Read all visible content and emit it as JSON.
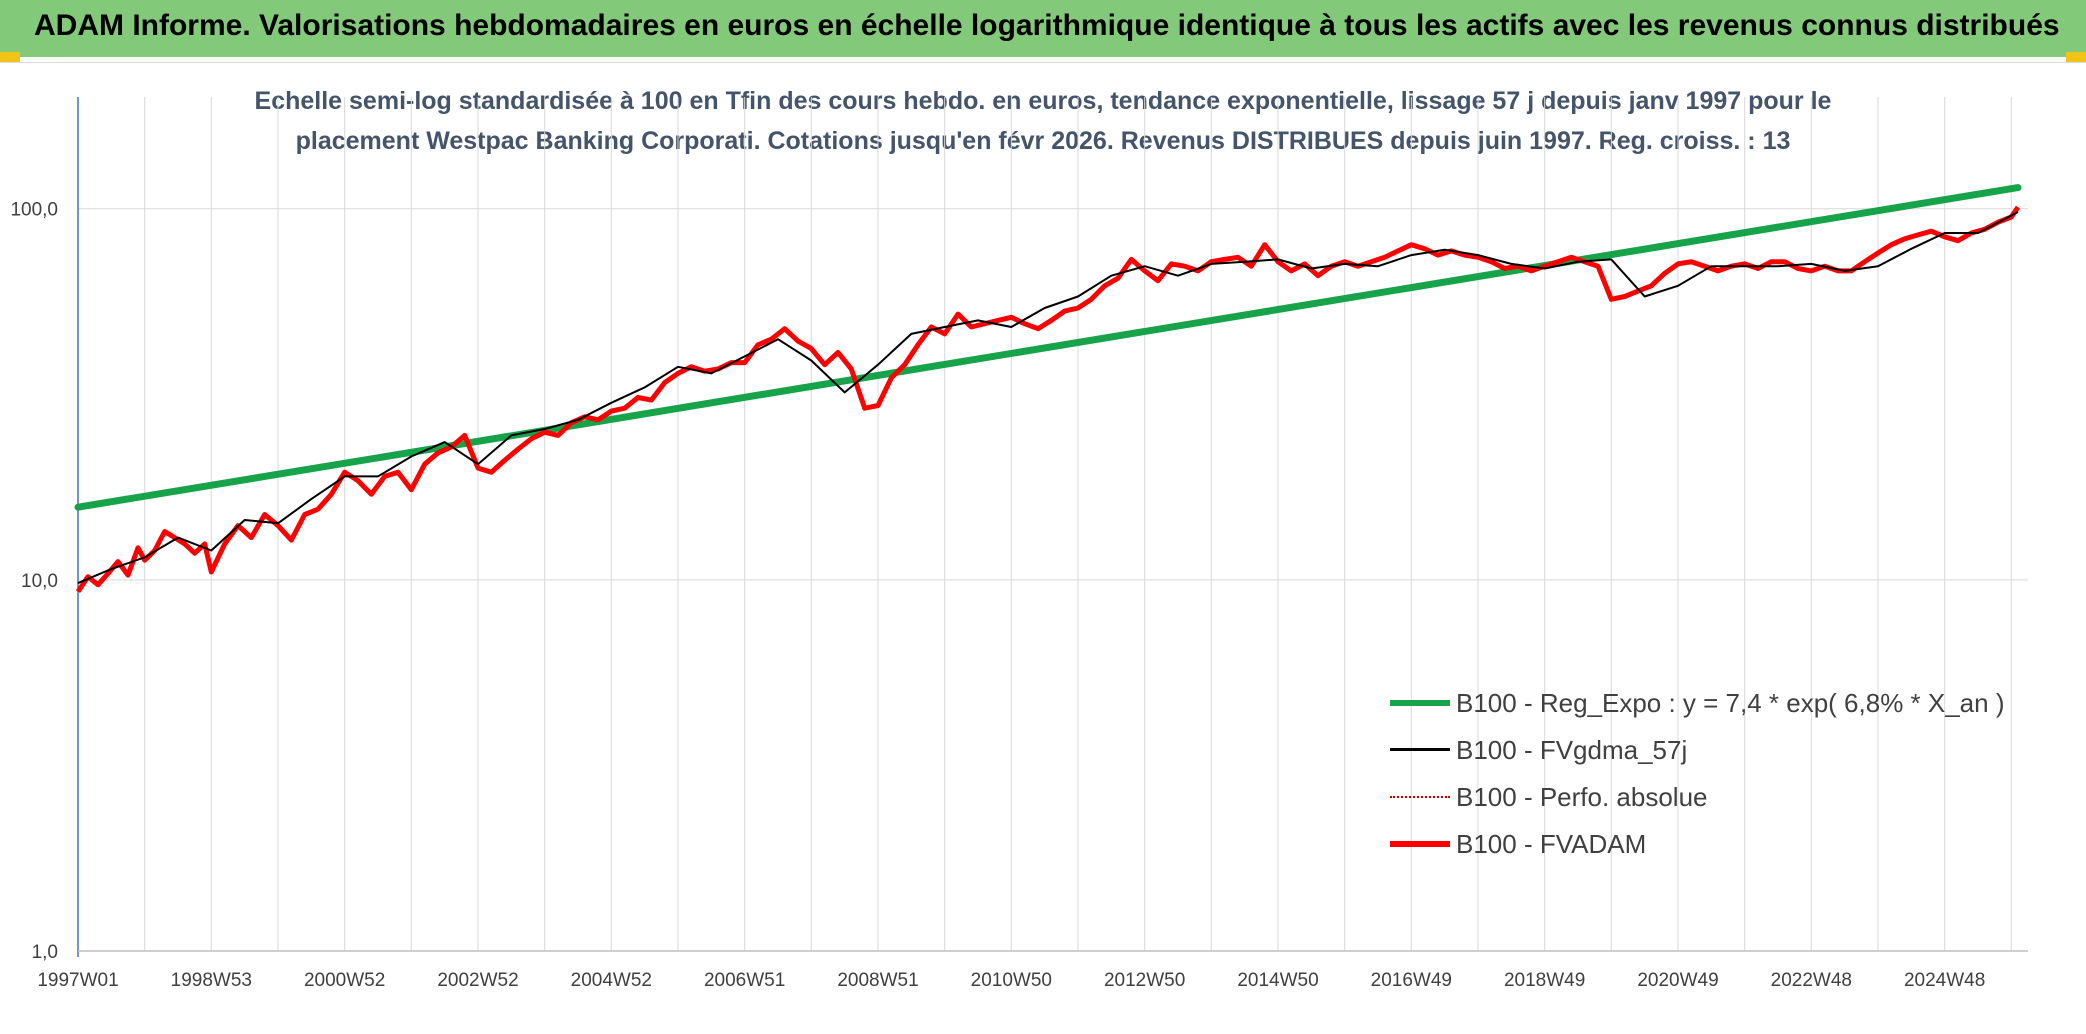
{
  "header": {
    "title": "ADAM Informe. Valorisations hebdomadaires en euros en échelle logarithmique identique à tous les actifs avec les revenus connus distribués"
  },
  "chart_data": {
    "type": "line",
    "title_line1": "Echelle semi-log standardisée à 100 en Tfin des cours hebdo. en euros, tendance exponentielle, lissage 57 j depuis janv 1997 pour le",
    "title_line2": "placement Westpac Banking Corporati. Cotations jusqu'en févr 2026. Revenus DISTRIBUES depuis juin 1997. Reg. croiss. : 13",
    "y_scale": "log",
    "ylim": [
      1,
      200
    ],
    "y_ticks": [
      1,
      10,
      100
    ],
    "y_tick_labels": [
      "1,0",
      "10,0",
      "100,0"
    ],
    "xlim": [
      1997.0,
      2026.25
    ],
    "x_tick_labels": [
      "1997W01",
      "1998W53",
      "2000W52",
      "2002W52",
      "2004W52",
      "2006W51",
      "2008W51",
      "2010W50",
      "2012W50",
      "2014W50",
      "2016W49",
      "2018W49",
      "2020W49",
      "2022W48",
      "2024W48"
    ],
    "x_tick_positions": [
      1997.0,
      1999.0,
      2001.0,
      2003.0,
      2005.0,
      2007.0,
      2009.0,
      2011.0,
      2013.0,
      2015.0,
      2017.0,
      2019.0,
      2021.0,
      2023.0,
      2025.0
    ],
    "grid": true,
    "legend_position": "lower-right",
    "series": [
      {
        "name": "B100 - Reg_Expo : y = 7,4 * exp( 6,8% *  X_an )",
        "color": "#16a34a",
        "style": "thick",
        "x": [
          1997.0,
          2026.1
        ],
        "y": [
          15.7,
          114
        ]
      },
      {
        "name": "B100 - FVgdma_57j",
        "color": "#000000",
        "style": "thin",
        "x": [
          1997.0,
          1997.5,
          1998.0,
          1998.5,
          1999.0,
          1999.5,
          2000.0,
          2000.5,
          2001.0,
          2001.5,
          2002.0,
          2002.5,
          2003.0,
          2003.5,
          2004.0,
          2004.5,
          2005.0,
          2005.5,
          2006.0,
          2006.5,
          2007.0,
          2007.5,
          2008.0,
          2008.5,
          2009.0,
          2009.5,
          2010.0,
          2010.5,
          2011.0,
          2011.5,
          2012.0,
          2012.5,
          2013.0,
          2013.5,
          2014.0,
          2014.5,
          2015.0,
          2015.5,
          2016.0,
          2016.5,
          2017.0,
          2017.5,
          2018.0,
          2018.5,
          2019.0,
          2019.5,
          2020.0,
          2020.5,
          2021.0,
          2021.5,
          2022.0,
          2022.5,
          2023.0,
          2023.5,
          2024.0,
          2024.5,
          2025.0,
          2025.5,
          2026.1
        ],
        "y": [
          9.8,
          10.7,
          11.5,
          13.0,
          12.0,
          14.5,
          14.2,
          16.5,
          19.0,
          19.0,
          21.5,
          23.5,
          20.5,
          24.5,
          25.5,
          27.0,
          30.0,
          33.0,
          37.5,
          36.0,
          40.0,
          44.5,
          39.0,
          32.0,
          38.0,
          46.0,
          48.0,
          50.0,
          48.0,
          54.0,
          58.0,
          66.0,
          70.0,
          66.0,
          71.0,
          72.0,
          73.0,
          69.0,
          71.0,
          70.0,
          75.0,
          77.5,
          75.0,
          71.0,
          69.0,
          72.0,
          73.0,
          58.0,
          62.0,
          70.0,
          70.0,
          70.0,
          71.0,
          68.0,
          70.0,
          78.0,
          86.0,
          86.0,
          98.0
        ]
      },
      {
        "name": "B100 - Perfo. absolue",
        "color": "#c00000",
        "style": "dotted",
        "x": [
          1997.0,
          2000.0,
          2004.0,
          2008.0,
          2012.0,
          2016.0,
          2020.0,
          2026.1
        ],
        "y": [
          9.5,
          14.5,
          26.0,
          42.0,
          60.0,
          70.0,
          60.0,
          100.0
        ]
      },
      {
        "name": "B100 - FVADAM",
        "color": "#ff0000",
        "style": "thick",
        "x": [
          1997.0,
          1997.15,
          1997.3,
          1997.45,
          1997.6,
          1997.75,
          1997.9,
          1998.0,
          1998.15,
          1998.3,
          1998.45,
          1998.6,
          1998.75,
          1998.9,
          1999.0,
          1999.2,
          1999.4,
          1999.6,
          1999.8,
          2000.0,
          2000.2,
          2000.4,
          2000.6,
          2000.8,
          2001.0,
          2001.2,
          2001.4,
          2001.6,
          2001.8,
          2002.0,
          2002.2,
          2002.4,
          2002.6,
          2002.8,
          2003.0,
          2003.2,
          2003.4,
          2003.6,
          2003.8,
          2004.0,
          2004.2,
          2004.4,
          2004.6,
          2004.8,
          2005.0,
          2005.2,
          2005.4,
          2005.6,
          2005.8,
          2006.0,
          2006.2,
          2006.4,
          2006.6,
          2006.8,
          2007.0,
          2007.2,
          2007.4,
          2007.6,
          2007.8,
          2008.0,
          2008.2,
          2008.4,
          2008.6,
          2008.8,
          2009.0,
          2009.2,
          2009.4,
          2009.6,
          2009.8,
          2010.0,
          2010.2,
          2010.4,
          2010.6,
          2010.8,
          2011.0,
          2011.2,
          2011.4,
          2011.6,
          2011.8,
          2012.0,
          2012.2,
          2012.4,
          2012.6,
          2012.8,
          2013.0,
          2013.2,
          2013.4,
          2013.6,
          2013.8,
          2014.0,
          2014.2,
          2014.4,
          2014.6,
          2014.8,
          2015.0,
          2015.2,
          2015.4,
          2015.6,
          2015.8,
          2016.0,
          2016.2,
          2016.4,
          2016.6,
          2016.8,
          2017.0,
          2017.2,
          2017.4,
          2017.6,
          2017.8,
          2018.0,
          2018.2,
          2018.4,
          2018.6,
          2018.8,
          2019.0,
          2019.2,
          2019.4,
          2019.6,
          2019.8,
          2020.0,
          2020.2,
          2020.4,
          2020.6,
          2020.8,
          2021.0,
          2021.2,
          2021.4,
          2021.6,
          2021.8,
          2022.0,
          2022.2,
          2022.4,
          2022.6,
          2022.8,
          2023.0,
          2023.2,
          2023.4,
          2023.6,
          2023.8,
          2024.0,
          2024.2,
          2024.4,
          2024.6,
          2024.8,
          2025.0,
          2025.2,
          2025.4,
          2025.6,
          2025.8,
          2026.0,
          2026.1
        ],
        "y": [
          9.3,
          10.2,
          9.7,
          10.4,
          11.2,
          10.3,
          12.2,
          11.3,
          12.0,
          13.5,
          13.0,
          12.5,
          11.8,
          12.5,
          10.5,
          12.5,
          14.0,
          13.0,
          15.0,
          14.0,
          12.8,
          15.0,
          15.5,
          17.0,
          19.5,
          18.5,
          17.0,
          19.0,
          19.5,
          17.5,
          20.5,
          22.0,
          22.8,
          24.5,
          20.0,
          19.5,
          21.0,
          22.5,
          24.0,
          25.0,
          24.5,
          26.5,
          27.5,
          27.0,
          28.5,
          29.0,
          31.0,
          30.5,
          34.0,
          36.0,
          37.5,
          36.5,
          37.0,
          38.5,
          38.5,
          43.0,
          44.5,
          47.5,
          44.0,
          42.0,
          38.0,
          41.0,
          37.0,
          29.0,
          29.5,
          35.0,
          38.0,
          43.0,
          48.0,
          46.0,
          52.0,
          48.0,
          49.0,
          50.0,
          51.0,
          49.0,
          47.5,
          50.0,
          53.0,
          54.0,
          57.0,
          62.0,
          65.0,
          73.0,
          68.0,
          64.0,
          71.0,
          70.0,
          68.0,
          72.0,
          73.0,
          74.0,
          70.0,
          80.0,
          72.0,
          68.0,
          71.0,
          66.0,
          70.0,
          72.0,
          70.0,
          72.0,
          74.0,
          77.0,
          80.0,
          78.0,
          75.0,
          77.0,
          75.0,
          74.0,
          72.0,
          69.0,
          70.0,
          68.0,
          70.0,
          72.0,
          74.0,
          72.0,
          70.0,
          57.0,
          58.0,
          60.0,
          62.0,
          67.0,
          71.0,
          72.0,
          70.0,
          68.0,
          70.0,
          71.0,
          69.0,
          72.0,
          72.0,
          69.0,
          68.0,
          70.0,
          68.0,
          68.0,
          72.0,
          76.0,
          80.0,
          83.0,
          85.0,
          87.0,
          84.0,
          82.0,
          86.0,
          88.0,
          92.0,
          95.0,
          101.0
        ]
      }
    ]
  }
}
